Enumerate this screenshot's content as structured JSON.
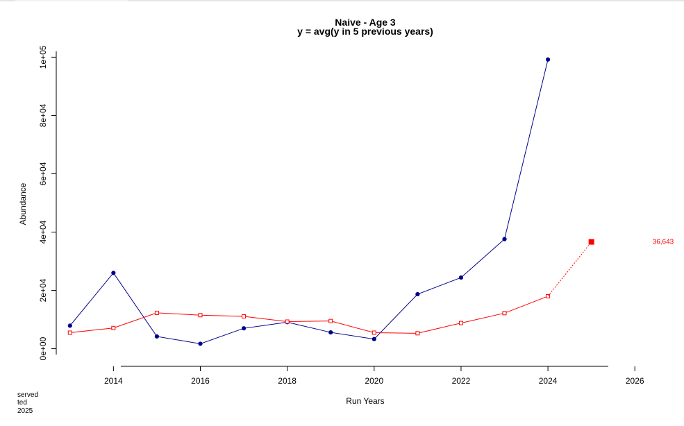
{
  "chart_data": {
    "type": "line",
    "title": "Naive - Age 3",
    "subtitle": "y = avg(y in 5 previous years)",
    "xlabel": "Run Years",
    "ylabel": "Abundance",
    "xlim": [
      2012.7,
      2026.3
    ],
    "ylim": [
      -2000,
      102000
    ],
    "x_ticks": [
      2014,
      2016,
      2018,
      2020,
      2022,
      2024,
      2026
    ],
    "x_tick_labels": [
      "2014",
      "2016",
      "2018",
      "2020",
      "2022",
      "2024",
      "2026"
    ],
    "y_ticks": [
      0,
      20000,
      40000,
      60000,
      80000,
      100000
    ],
    "y_tick_labels": [
      "0e+00",
      "2e+04",
      "4e+04",
      "6e+04",
      "8e+04",
      "1e+05"
    ],
    "grid": false,
    "series": [
      {
        "name": "",
        "color": "#00008b",
        "marker": "filled-circle",
        "x": [
          2013,
          2014,
          2015,
          2016,
          2017,
          2018,
          2019,
          2020,
          2021,
          2022,
          2023,
          2024
        ],
        "values": [
          7900,
          26000,
          4200,
          1700,
          7000,
          9100,
          5600,
          3300,
          18700,
          24400,
          37600,
          99200
        ]
      },
      {
        "name": "",
        "color": "#ff0000",
        "marker": "open-square",
        "x": [
          2013,
          2014,
          2015,
          2016,
          2017,
          2018,
          2019,
          2020,
          2021,
          2022,
          2023,
          2024
        ],
        "values": [
          5500,
          7100,
          12300,
          11500,
          11100,
          9300,
          9500,
          5500,
          5300,
          8800,
          12200,
          18000
        ]
      },
      {
        "name": "",
        "color": "#ff0000",
        "marker": "filled-square",
        "dashed": true,
        "x": [
          2024,
          2025
        ],
        "values": [
          18000,
          36643
        ]
      }
    ],
    "annotations": [
      {
        "text": "36,643",
        "x": 2025,
        "y": 36643
      }
    ]
  },
  "footnote": {
    "lines": [
      "served",
      "ted",
      "2025"
    ]
  }
}
